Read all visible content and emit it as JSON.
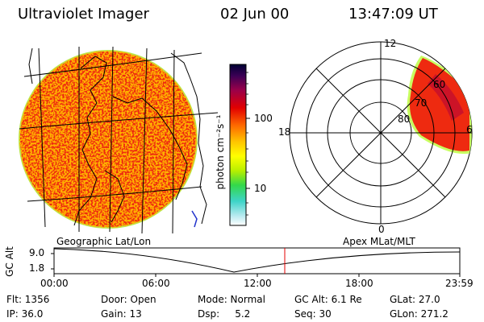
{
  "header": {
    "title": "Ultraviolet Imager",
    "date": "02 Jun 00",
    "time": "13:47:09 UT"
  },
  "colorbar": {
    "unit_label": "photon cm⁻²s⁻¹",
    "ticks": [
      "100",
      "10"
    ]
  },
  "polar": {
    "mlt_labels": [
      "12",
      "18",
      "6",
      "0"
    ],
    "mlat_labels": [
      "60",
      "70",
      "80"
    ]
  },
  "labels": {
    "geo": "Geographic Lat/Lon",
    "apex": "Apex MLat/MLT"
  },
  "timeline": {
    "axis_label": "GC Alt",
    "y_ticks": [
      "9.0",
      "1.8"
    ],
    "x_ticks": [
      "00:00",
      "06:00",
      "12:00",
      "18:00",
      "23:59"
    ],
    "marker_color": "#e60000"
  },
  "status": {
    "flt": "Flt: 1356",
    "ip": "IP: 36.0",
    "door": "Door: Open",
    "gain": "Gain: 13",
    "mode": "Mode: Normal",
    "dsp": "Dsp:     5.2",
    "gcalt": "GC Alt: 6.1 Re",
    "seq": "Seq: 30",
    "glat": "GLat: 27.0",
    "glon": "GLon: 271.2"
  }
}
